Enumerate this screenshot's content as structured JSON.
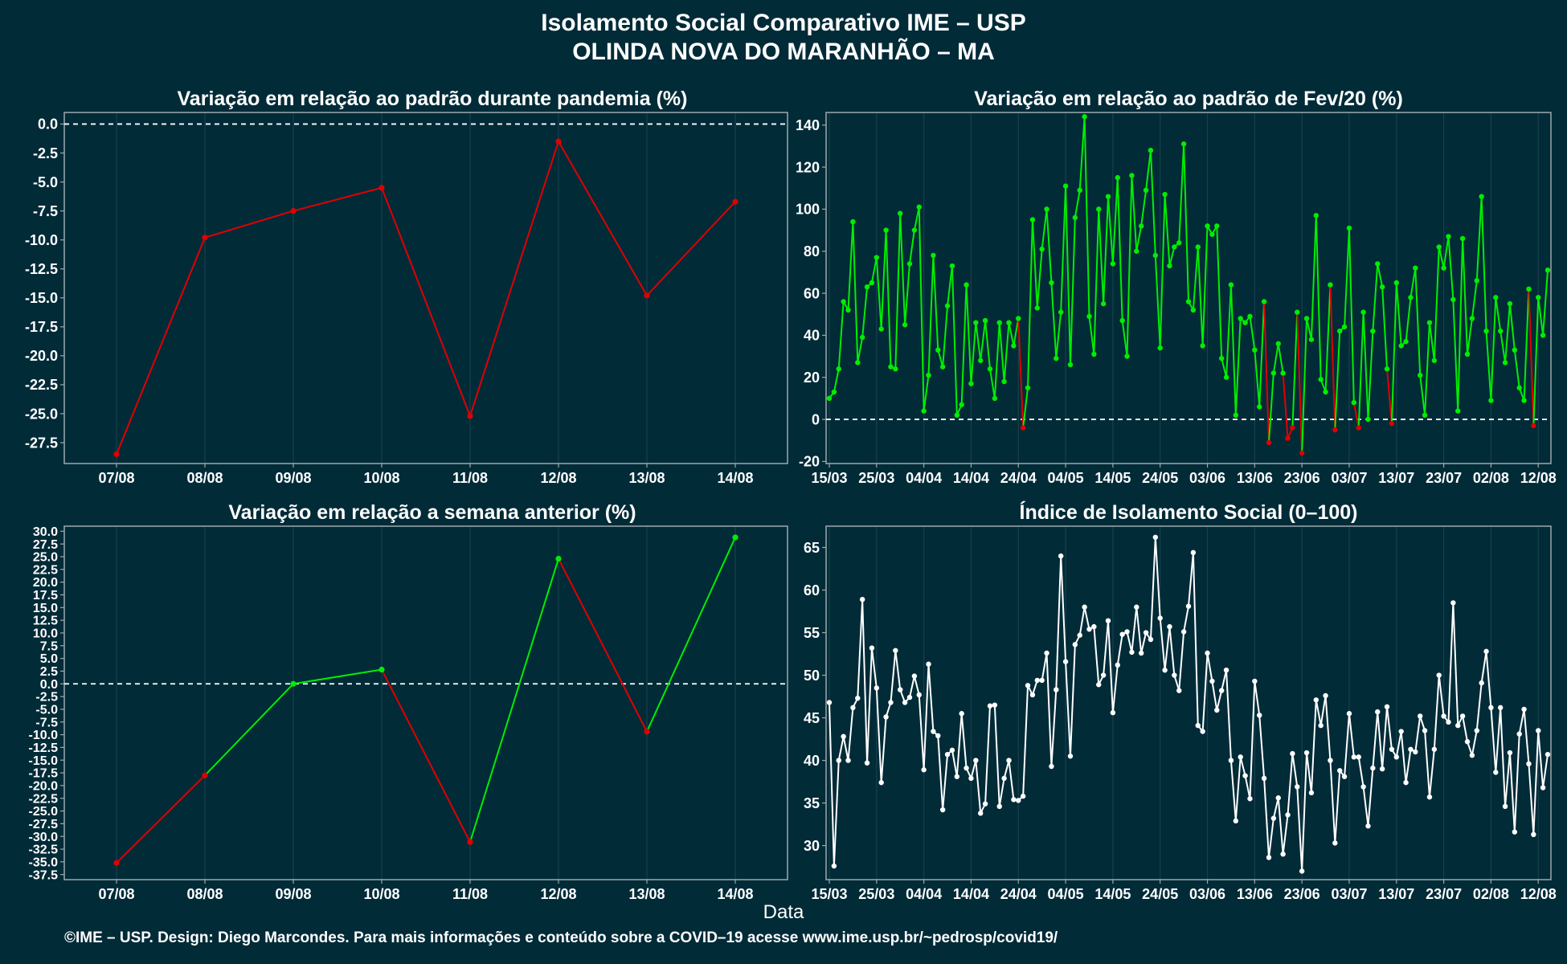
{
  "header": {
    "title_line1": "Isolamento Social Comparativo IME – USP",
    "title_line2": "OLINDA NOVA DO MARANHÃO – MA"
  },
  "footer": {
    "xlabel": "Data",
    "credit": "©IME – USP. Design: Diego Marcondes. Para mais informações e conteúdo sobre a COVID–19 acesse www.ime.usp.br/~pedrosp/covid19/"
  },
  "colors": {
    "background": "#022b38",
    "positive": "#00ee00",
    "negative": "#e00000",
    "index_line": "#ffffff",
    "panel_border": "#9aa9ad",
    "grid": "#17404c"
  },
  "chart_data": [
    {
      "id": "pandemic",
      "type": "line",
      "title": "Variação em relação ao padrão durante pandemia (%)",
      "categories": [
        "07/08",
        "08/08",
        "09/08",
        "10/08",
        "11/08",
        "12/08",
        "13/08",
        "14/08"
      ],
      "values": [
        -28.5,
        -9.8,
        -7.5,
        -5.5,
        -25.2,
        -1.5,
        -14.8,
        -6.7
      ],
      "ylim": [
        -29.3,
        1.0
      ],
      "yticks": [
        0.0,
        -2.5,
        -5.0,
        -7.5,
        -10.0,
        -12.5,
        -15.0,
        -17.5,
        -20.0,
        -22.5,
        -25.0,
        -27.5
      ],
      "reference_line": 0,
      "grid": true
    },
    {
      "id": "feb20",
      "type": "line",
      "title": "Variação em relação ao padrão de Fev/20 (%)",
      "x_start": "15/03",
      "xticks": [
        "15/03",
        "25/03",
        "04/04",
        "14/04",
        "24/04",
        "04/05",
        "14/05",
        "24/05",
        "03/06",
        "13/06",
        "23/06",
        "03/07",
        "13/07",
        "23/07",
        "02/08",
        "12/08"
      ],
      "values": [
        10,
        13,
        24,
        56,
        52,
        94,
        27,
        39,
        63,
        65,
        77,
        43,
        90,
        25,
        24,
        98,
        45,
        74,
        90,
        101,
        4,
        21,
        78,
        33,
        25,
        54,
        73,
        2,
        7,
        64,
        17,
        46,
        28,
        47,
        24,
        10,
        46,
        18,
        46,
        35,
        48,
        -4,
        15,
        95,
        53,
        81,
        100,
        65,
        29,
        51,
        111,
        26,
        96,
        109,
        144,
        49,
        31,
        100,
        55,
        106,
        74,
        115,
        47,
        30,
        116,
        80,
        92,
        109,
        128,
        78,
        34,
        107,
        73,
        82,
        84,
        131,
        56,
        52,
        82,
        35,
        92,
        88,
        92,
        29,
        20,
        64,
        2,
        48,
        46,
        49,
        33,
        6,
        56,
        -11,
        22,
        36,
        22,
        -9,
        -4,
        51,
        -16,
        48,
        38,
        97,
        19,
        13,
        64,
        -5,
        42,
        44,
        91,
        8,
        -4,
        51,
        0,
        42,
        74,
        63,
        24,
        -2,
        65,
        35,
        37,
        58,
        72,
        21,
        2,
        46,
        28,
        82,
        72,
        87,
        57,
        4,
        86,
        31,
        48,
        66,
        106,
        42,
        9,
        58,
        42,
        27,
        55,
        33,
        15,
        9,
        62,
        -3,
        58,
        40,
        71
      ],
      "ylim": [
        -21,
        146
      ],
      "yticks": [
        -20,
        0,
        20,
        40,
        60,
        80,
        100,
        120,
        140
      ],
      "reference_line": 0,
      "grid": true
    },
    {
      "id": "weekly",
      "type": "line",
      "title": "Variação em relação a semana anterior (%)",
      "categories": [
        "07/08",
        "08/08",
        "09/08",
        "10/08",
        "11/08",
        "12/08",
        "13/08",
        "14/08"
      ],
      "values": [
        -35.2,
        -18.0,
        0.0,
        2.8,
        -31.1,
        24.6,
        -9.4,
        28.8
      ],
      "ylim": [
        -38.5,
        31.0
      ],
      "yticks": [
        30.0,
        27.5,
        25.0,
        22.5,
        20.0,
        17.5,
        15.0,
        12.5,
        10.0,
        7.5,
        5.0,
        2.5,
        0.0,
        -2.5,
        -5.0,
        -7.5,
        -10.0,
        -12.5,
        -15.0,
        -17.5,
        -20.0,
        -22.5,
        -25.0,
        -27.5,
        -30.0,
        -32.5,
        -35.0,
        -37.5
      ],
      "reference_line": 0,
      "grid": true
    },
    {
      "id": "index",
      "type": "line",
      "title": "Índice de Isolamento Social (0–100)",
      "x_start": "15/03",
      "xticks": [
        "15/03",
        "25/03",
        "04/04",
        "14/04",
        "24/04",
        "04/05",
        "14/05",
        "24/05",
        "03/06",
        "13/06",
        "23/06",
        "03/07",
        "13/07",
        "23/07",
        "02/08",
        "12/08"
      ],
      "values": [
        46.8,
        27.6,
        40.0,
        42.8,
        40.0,
        46.2,
        47.3,
        58.9,
        39.7,
        53.2,
        48.5,
        37.4,
        45.1,
        46.8,
        52.9,
        48.3,
        46.8,
        47.4,
        49.9,
        47.7,
        38.9,
        51.3,
        43.4,
        42.9,
        34.2,
        40.7,
        41.2,
        38.1,
        45.5,
        39.1,
        37.9,
        40.0,
        33.8,
        34.9,
        46.4,
        46.5,
        34.6,
        37.9,
        40.0,
        35.4,
        35.3,
        35.8,
        48.8,
        47.7,
        49.4,
        49.4,
        52.6,
        39.3,
        48.3,
        64.0,
        51.6,
        40.5,
        53.6,
        54.7,
        58.0,
        55.4,
        55.7,
        48.9,
        50.0,
        56.4,
        45.6,
        51.2,
        54.8,
        55.1,
        52.7,
        58.0,
        52.6,
        55.0,
        54.2,
        66.2,
        56.7,
        50.6,
        55.7,
        50.0,
        48.2,
        55.1,
        58.1,
        64.4,
        44.1,
        43.4,
        52.6,
        49.3,
        45.9,
        48.2,
        50.6,
        40.0,
        32.9,
        40.4,
        38.2,
        35.5,
        49.3,
        45.3,
        37.9,
        28.6,
        33.2,
        35.6,
        29.0,
        33.6,
        40.8,
        36.9,
        27.0,
        40.9,
        36.2,
        47.1,
        44.1,
        47.6,
        40.0,
        30.3,
        38.8,
        38.1,
        45.5,
        40.4,
        40.4,
        36.9,
        32.3,
        39.1,
        45.7,
        39.0,
        46.3,
        41.3,
        40.4,
        43.4,
        37.4,
        41.3,
        41.0,
        45.2,
        43.5,
        35.7,
        41.3,
        50.0,
        45.2,
        44.5,
        58.5,
        44.1,
        45.2,
        42.2,
        40.6,
        43.5,
        49.1,
        52.8,
        46.2,
        38.6,
        46.2,
        34.6,
        40.9,
        31.6,
        43.1,
        46.0,
        39.6,
        31.3,
        43.5,
        36.8,
        40.7
      ],
      "ylim": [
        26.0,
        67.5
      ],
      "yticks": [
        30,
        35,
        40,
        45,
        50,
        55,
        60,
        65
      ],
      "grid": true
    }
  ]
}
